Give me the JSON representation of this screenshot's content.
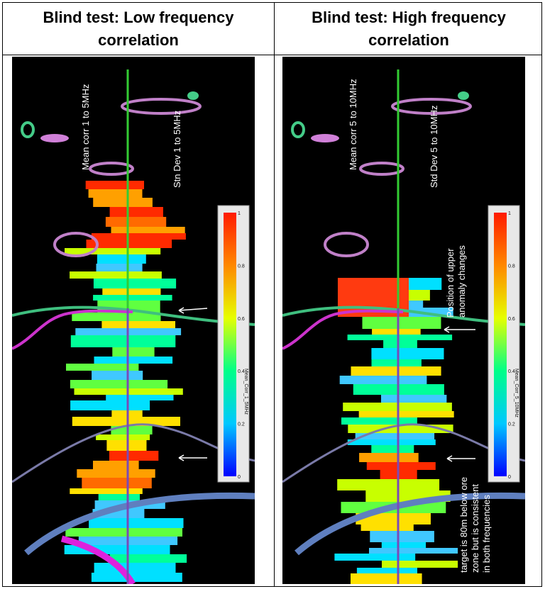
{
  "headers": {
    "left": {
      "line1": "Blind test: Low frequency",
      "line2": "correlation"
    },
    "right": {
      "line1": "Blind test: High frequency",
      "line2": "correlation"
    }
  },
  "left_panel": {
    "mean_label": "Mean corr 1 to 5MHz",
    "std_label": "Stn Dev 1 to 5MHz",
    "colorbar_title": "Mean_Corr_1_5MHz",
    "colorbar_ticks": [
      "1",
      "0.8",
      "0.6",
      "0.4",
      "0.2",
      "0"
    ]
  },
  "right_panel": {
    "mean_label": "Mean corr 5 to 10MHz",
    "std_label": "Std Dev 5 to 10MHz",
    "colorbar_title": "Mean_Corr_5_10MHz",
    "colorbar_ticks": [
      "1",
      "0.8",
      "0.6",
      "0.4",
      "0.2",
      "0"
    ],
    "annotation_upper": [
      "Position of upper",
      "anomaly changes"
    ],
    "annotation_lower": [
      "target is 80m below ore",
      "zone but is consistent",
      "in both frequencies"
    ]
  }
}
